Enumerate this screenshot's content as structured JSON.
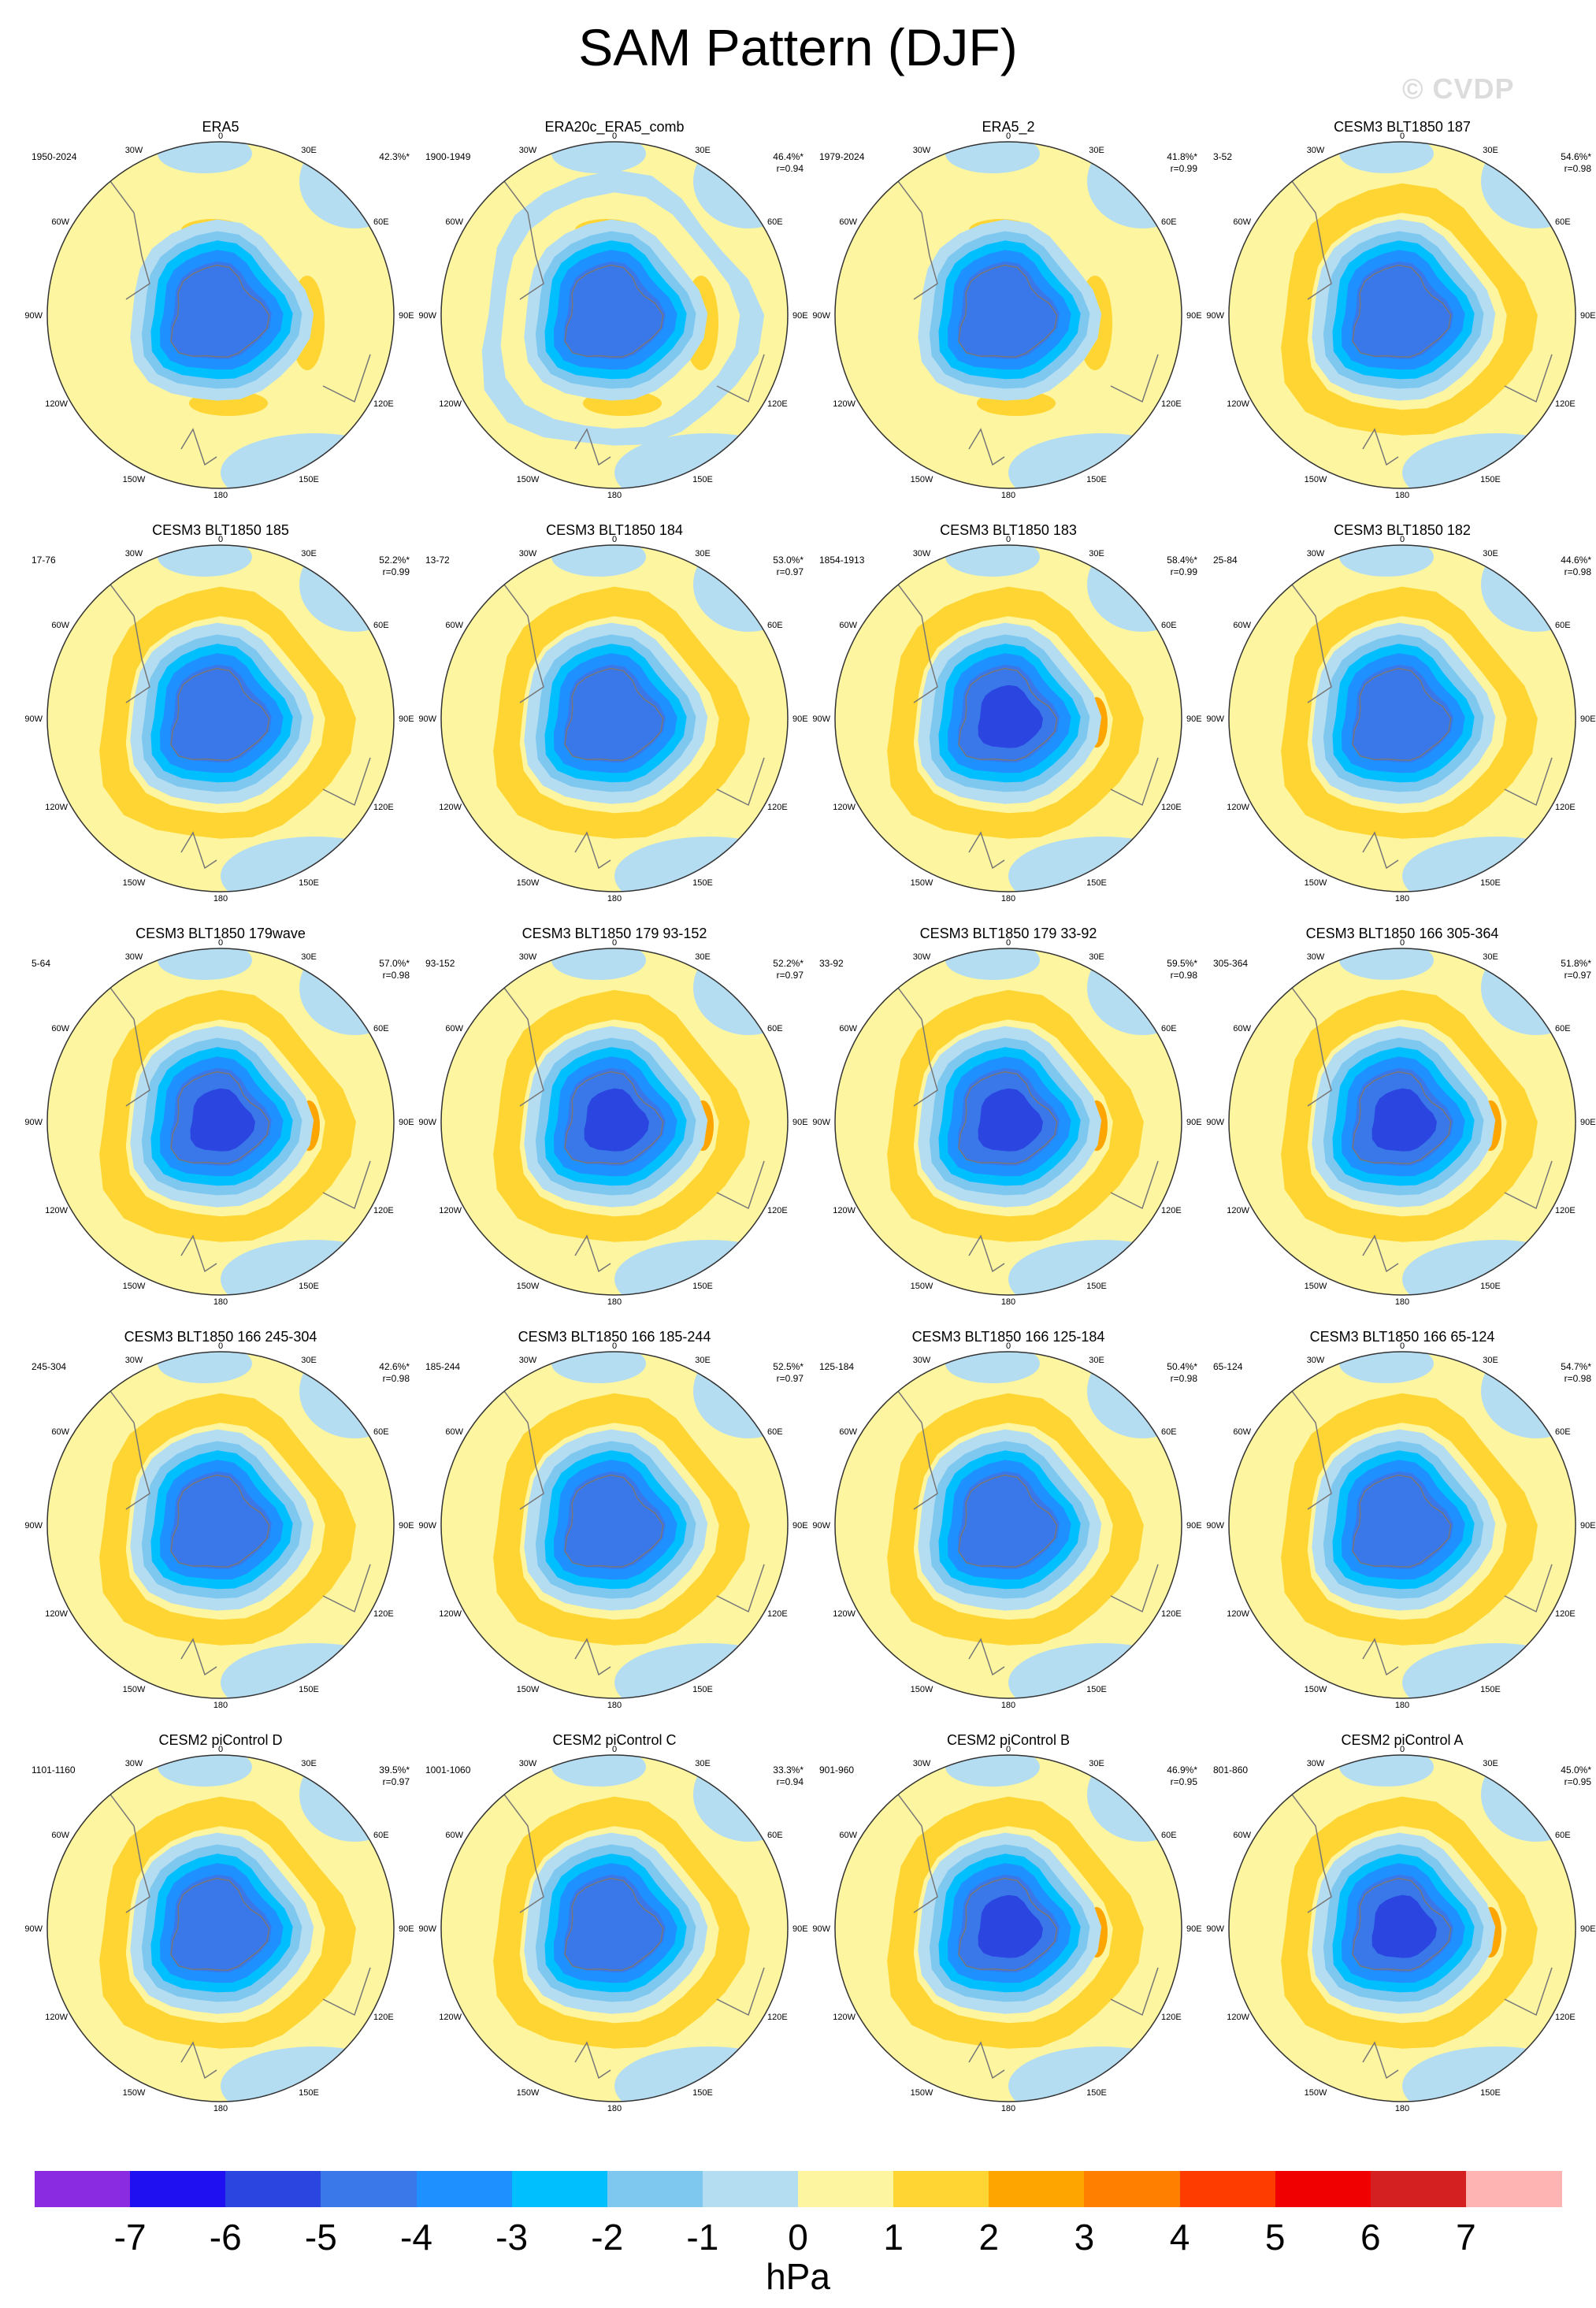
{
  "header": {
    "title": "SAM Pattern (DJF)",
    "watermark": "© CVDP"
  },
  "map_labels": {
    "n": "0",
    "nw": "30W",
    "ne": "30E",
    "w60": "60W",
    "e60": "60E",
    "w90": "90W",
    "e90": "90E",
    "w120": "120W",
    "e120": "120E",
    "w150": "150W",
    "e150": "150E",
    "s": "180"
  },
  "panels": [
    {
      "title": "ERA5",
      "years": "1950-2024",
      "pct": "42.3%*",
      "r": "",
      "style": "obs"
    },
    {
      "title": "ERA20c_ERA5_comb",
      "years": "1900-1949",
      "pct": "46.4%*",
      "r": "r=0.94",
      "style": "obs2"
    },
    {
      "title": "ERA5_2",
      "years": "1979-2024",
      "pct": "41.8%*",
      "r": "r=0.99",
      "style": "obs"
    },
    {
      "title": "CESM3 BLT1850 187",
      "years": "3-52",
      "pct": "54.6%*",
      "r": "r=0.98",
      "style": "model"
    },
    {
      "title": "CESM3 BLT1850 185",
      "years": "17-76",
      "pct": "52.2%*",
      "r": "r=0.99",
      "style": "model"
    },
    {
      "title": "CESM3 BLT1850 184",
      "years": "13-72",
      "pct": "53.0%*",
      "r": "r=0.97",
      "style": "model"
    },
    {
      "title": "CESM3 BLT1850 183",
      "years": "1854-1913",
      "pct": "58.4%*",
      "r": "r=0.99",
      "style": "strong"
    },
    {
      "title": "CESM3 BLT1850 182",
      "years": "25-84",
      "pct": "44.6%*",
      "r": "r=0.98",
      "style": "model"
    },
    {
      "title": "CESM3 BLT1850 179wave",
      "years": "5-64",
      "pct": "57.0%*",
      "r": "r=0.98",
      "style": "strong"
    },
    {
      "title": "CESM3 BLT1850 179 93-152",
      "years": "93-152",
      "pct": "52.2%*",
      "r": "r=0.97",
      "style": "strong"
    },
    {
      "title": "CESM3 BLT1850 179 33-92",
      "years": "33-92",
      "pct": "59.5%*",
      "r": "r=0.98",
      "style": "strong"
    },
    {
      "title": "CESM3 BLT1850 166 305-364",
      "years": "305-364",
      "pct": "51.8%*",
      "r": "r=0.97",
      "style": "strong"
    },
    {
      "title": "CESM3 BLT1850 166 245-304",
      "years": "245-304",
      "pct": "42.6%*",
      "r": "r=0.98",
      "style": "model"
    },
    {
      "title": "CESM3 BLT1850 166 185-244",
      "years": "185-244",
      "pct": "52.5%*",
      "r": "r=0.97",
      "style": "model"
    },
    {
      "title": "CESM3 BLT1850 166 125-184",
      "years": "125-184",
      "pct": "50.4%*",
      "r": "r=0.98",
      "style": "model"
    },
    {
      "title": "CESM3 BLT1850 166 65-124",
      "years": "65-124",
      "pct": "54.7%*",
      "r": "r=0.98",
      "style": "model"
    },
    {
      "title": "CESM2 piControl D",
      "years": "1101-1160",
      "pct": "39.5%*",
      "r": "r=0.97",
      "style": "model"
    },
    {
      "title": "CESM2 piControl C",
      "years": "1001-1060",
      "pct": "33.3%*",
      "r": "r=0.94",
      "style": "model"
    },
    {
      "title": "CESM2 piControl B",
      "years": "901-960",
      "pct": "46.9%*",
      "r": "r=0.95",
      "style": "strong"
    },
    {
      "title": "CESM2 piControl A",
      "years": "801-860",
      "pct": "45.0%*",
      "r": "r=0.95",
      "style": "strong"
    }
  ],
  "colorbar": {
    "ticks": [
      "-7",
      "-6",
      "-5",
      "-4",
      "-3",
      "-2",
      "-1",
      "0",
      "1",
      "2",
      "3",
      "4",
      "5",
      "6",
      "7"
    ],
    "colors": [
      "#8a2be2",
      "#1e10f0",
      "#2a45e0",
      "#3a78ea",
      "#1e90ff",
      "#00bfff",
      "#7ec8f0",
      "#b4ddf2",
      "#fdf5a0",
      "#fed532",
      "#ffa500",
      "#ff7f00",
      "#ff3c00",
      "#f00000",
      "#d42020",
      "#ffb4b4"
    ],
    "units": "hPa"
  }
}
